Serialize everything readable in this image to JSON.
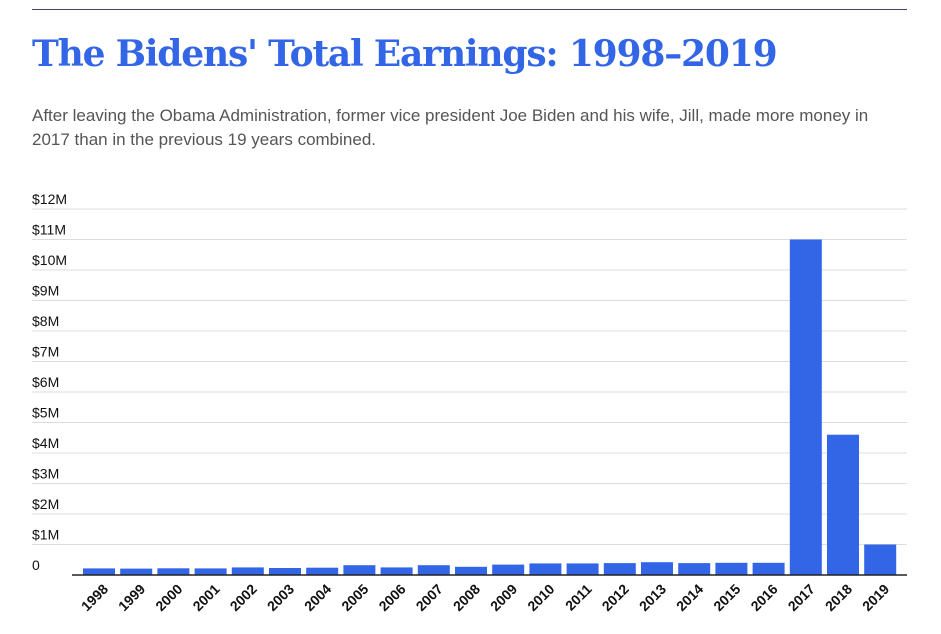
{
  "header": {
    "title": "The Bidens' Total Earnings: 1998–2019",
    "subtitle": "After leaving the Obama Administration, former vice president Joe Biden and his wife, Jill, made more money in 2017 than in the previous 19 years combined."
  },
  "colors": {
    "bar": "#3366e6",
    "title": "#3366e6",
    "grid": "#dcdcdc",
    "axis": "#222222"
  },
  "chart_data": {
    "type": "bar",
    "title": "The Bidens' Total Earnings: 1998–2019",
    "xlabel": "",
    "ylabel": "",
    "ylim": [
      0,
      12000000
    ],
    "grid": true,
    "legend": "none",
    "categories": [
      "1998",
      "1999",
      "2000",
      "2001",
      "2002",
      "2003",
      "2004",
      "2005",
      "2006",
      "2007",
      "2008",
      "2009",
      "2010",
      "2011",
      "2012",
      "2013",
      "2014",
      "2015",
      "2016",
      "2017",
      "2018",
      "2019"
    ],
    "values": [
      215000,
      210000,
      220000,
      215000,
      250000,
      230000,
      240000,
      320000,
      250000,
      320000,
      270000,
      340000,
      380000,
      380000,
      390000,
      420000,
      390000,
      400000,
      400000,
      11000000,
      4600000,
      1000000
    ],
    "yticks": [
      {
        "value": 0,
        "label": "0"
      },
      {
        "value": 1000000,
        "label": "$1M"
      },
      {
        "value": 2000000,
        "label": "$2M"
      },
      {
        "value": 3000000,
        "label": "$3M"
      },
      {
        "value": 4000000,
        "label": "$4M"
      },
      {
        "value": 5000000,
        "label": "$5M"
      },
      {
        "value": 6000000,
        "label": "$6M"
      },
      {
        "value": 7000000,
        "label": "$7M"
      },
      {
        "value": 8000000,
        "label": "$8M"
      },
      {
        "value": 9000000,
        "label": "$9M"
      },
      {
        "value": 10000000,
        "label": "$10M"
      },
      {
        "value": 11000000,
        "label": "$11M"
      },
      {
        "value": 12000000,
        "label": "$12M"
      }
    ]
  }
}
